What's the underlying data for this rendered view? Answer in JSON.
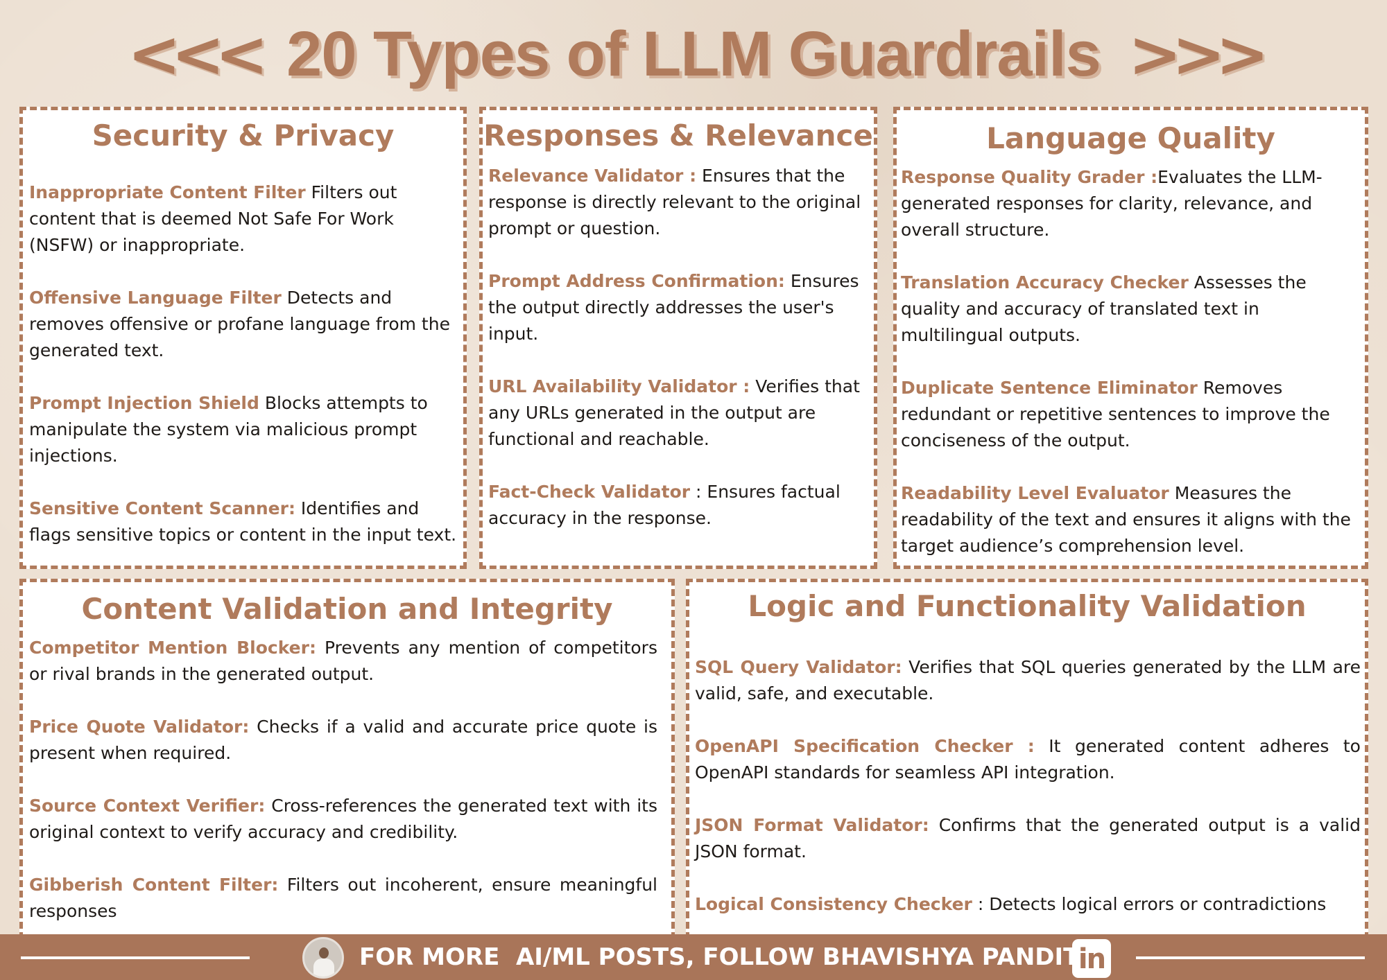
{
  "title": {
    "left_glyph": "<<<",
    "text": "20 Types of LLM Guardrails",
    "right_glyph": ">>>"
  },
  "sections": [
    {
      "title": "Security & Privacy",
      "items": [
        {
          "name": "Inappropriate Content Filter",
          "desc": " Filters out content that is deemed Not Safe For Work (NSFW) or inappropriate."
        },
        {
          "name": "Offensive Language Filter",
          "desc": " Detects and removes offensive or profane language from the generated text."
        },
        {
          "name": "Prompt Injection Shield",
          "desc": " Blocks attempts to manipulate the system via malicious prompt injections."
        },
        {
          "name": "Sensitive Content Scanner:",
          "desc": " Identifies and flags sensitive topics or content in the input text."
        }
      ]
    },
    {
      "title": "Responses & Relevance",
      "items": [
        {
          "name": "Relevance Validator :",
          "desc": "  Ensures that the response is directly relevant to the original prompt or question."
        },
        {
          "name": "Prompt Address Confirmation:",
          "desc": "   Ensures the output directly addresses the user's input."
        },
        {
          "name": "URL Availability Validator :",
          "desc": " Verifies that any URLs generated in the output are functional and reachable."
        },
        {
          "name": "Fact-Check Validator",
          "desc": " : Ensures factual accuracy in the response."
        }
      ]
    },
    {
      "title": "Language Quality",
      "items": [
        {
          "name": "Response Quality Grader :",
          "desc": "Evaluates the LLM-generated responses for clarity, relevance, and overall structure."
        },
        {
          "name": "Translation Accuracy Checker",
          "desc": " Assesses the quality and accuracy of translated text in multilingual outputs."
        },
        {
          "name": "Duplicate Sentence Eliminator",
          "desc": " Removes redundant or repetitive sentences to improve the conciseness of the output."
        },
        {
          "name": "Readability Level Evaluator",
          "desc": " Measures the readability of the text and ensures it aligns with the target audience’s comprehension level."
        }
      ]
    },
    {
      "title": "Content Validation and Integrity",
      "items": [
        {
          "name": "Competitor Mention Blocker:",
          "desc": "  Prevents any mention of competitors or rival brands in the generated output."
        },
        {
          "name": "Price Quote Validator:",
          "desc": " Checks if a valid and accurate price quote is present when required."
        },
        {
          "name": "Source Context Verifier:",
          "desc": " Cross-references the generated text with its original context to verify accuracy and credibility."
        },
        {
          "name": "Gibberish Content Filter:",
          "desc": " Filters out incoherent, ensure meaningful responses"
        }
      ]
    },
    {
      "title": "Logic and Functionality Validation",
      "items": [
        {
          "name": "SQL Query Validator:",
          "desc": "  Verifies that SQL queries generated by the LLM are valid, safe, and executable."
        },
        {
          "name": "OpenAPI Specification Checker :",
          "desc": " It generated content adheres to OpenAPI standards for seamless API integration."
        },
        {
          "name": "JSON Format Validator:",
          "desc": " Confirms that the generated output is a valid JSON format."
        },
        {
          "name": "Logical Consistency Checker",
          "desc": " : Detects logical errors or contradictions"
        }
      ]
    }
  ],
  "footer": {
    "text": "FOR MORE  AI/ML POSTS, FOLLOW BHAVISHYA PANDIT",
    "linkedin_icon": "in"
  },
  "colors": {
    "accent": "#b07b5c",
    "footer_bg": "#a97559",
    "background": "#ecdfd1"
  }
}
